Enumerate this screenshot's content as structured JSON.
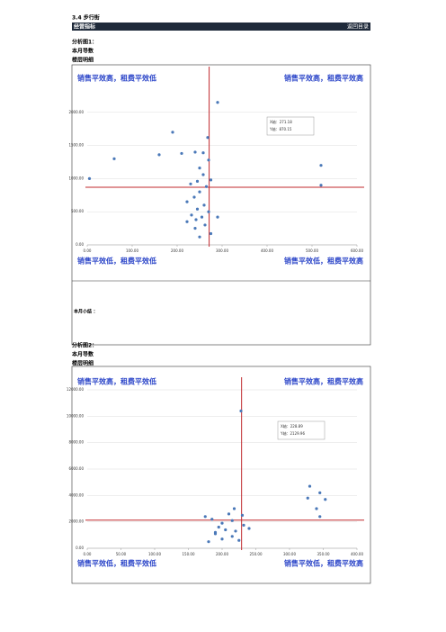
{
  "header": {
    "section": "3.4 步行街",
    "title": "经营指标",
    "link": "返回目录"
  },
  "panels": [
    {
      "heading": "分析图1：",
      "subheading": "本月导数",
      "caption": "楼层明细",
      "summary": "本月小结 ：",
      "chart": {
        "type": "scatter",
        "color": "#4a78b8",
        "ref_color": "#c0282d",
        "quadrant_labels": [
          "销售平效高，租费平效低",
          "销售平效高，租费平效高",
          "销售平效低，租费平效低",
          "销售平效低，租费平效高"
        ],
        "note": [
          "X轴：271.18",
          "Y轴：870.15"
        ],
        "ref_x": 271.18,
        "ref_y": 870.15,
        "xlim": [
          0,
          600
        ],
        "ylim": [
          0,
          2500
        ],
        "xticks": [
          {
            "value": 0,
            "label": "0.00"
          },
          {
            "value": 100,
            "label": "100.00"
          },
          {
            "value": 200,
            "label": "200.00"
          },
          {
            "value": 300,
            "label": "300.00"
          },
          {
            "value": 400,
            "label": "400.00"
          },
          {
            "value": 500,
            "label": "500.00"
          },
          {
            "value": 600,
            "label": "600.00"
          }
        ],
        "yticks": [
          {
            "value": 0,
            "label": "0.00"
          },
          {
            "value": 500,
            "label": "500.00"
          },
          {
            "value": 1000,
            "label": "1000.00"
          },
          {
            "value": 1500,
            "label": "1500.00"
          },
          {
            "value": 2000,
            "label": "2000.00"
          }
        ],
        "x": [
          290,
          190,
          268,
          160,
          210,
          258,
          240,
          270,
          60,
          5,
          520,
          520,
          250,
          258,
          275,
          245,
          230,
          265,
          250,
          238,
          222,
          260,
          245,
          270,
          232,
          255,
          242,
          290,
          222,
          262,
          240,
          275,
          250
        ],
        "y": [
          2150,
          1700,
          1620,
          1360,
          1380,
          1390,
          1400,
          1280,
          1300,
          1000,
          1200,
          900,
          1160,
          1060,
          980,
          960,
          920,
          880,
          800,
          720,
          650,
          600,
          540,
          500,
          450,
          420,
          380,
          420,
          350,
          300,
          250,
          170,
          120
        ]
      }
    },
    {
      "heading": "分析图2：",
      "subheading": "本月导数",
      "caption": "楼层明细",
      "chart": {
        "type": "scatter",
        "color": "#4a78b8",
        "ref_color": "#c0282d",
        "quadrant_labels": [
          "销售平效高，租费平效低",
          "销售平效高，租费平效高",
          "销售平效低，租费平效低",
          "销售平效低，租费平效高"
        ],
        "note": [
          "X轴：228.89",
          "Y轴：2129.96"
        ],
        "ref_x": 228.89,
        "ref_y": 2129.96,
        "xlim": [
          0,
          400
        ],
        "ylim": [
          0,
          12000
        ],
        "xticks": [
          {
            "value": 0,
            "label": "0.00"
          },
          {
            "value": 50,
            "label": "50.00"
          },
          {
            "value": 100,
            "label": "100.00"
          },
          {
            "value": 150,
            "label": "150.00"
          },
          {
            "value": 200,
            "label": "200.00"
          },
          {
            "value": 250,
            "label": "250.00"
          },
          {
            "value": 300,
            "label": "300.00"
          },
          {
            "value": 350,
            "label": "350.00"
          },
          {
            "value": 400,
            "label": "400.00"
          }
        ],
        "yticks": [
          {
            "value": 0,
            "label": "0.00"
          },
          {
            "value": 2000,
            "label": "2000.00"
          },
          {
            "value": 4000,
            "label": "4000.00"
          },
          {
            "value": 6000,
            "label": "6000.00"
          },
          {
            "value": 8000,
            "label": "8000.00"
          },
          {
            "value": 10000,
            "label": "10000.00"
          },
          {
            "value": 12000,
            "label": "12000.00"
          }
        ],
        "x": [
          228,
          330,
          345,
          327,
          353,
          340,
          345,
          218,
          210,
          230,
          185,
          215,
          200,
          232,
          195,
          205,
          220,
          190,
          215,
          200,
          180,
          225,
          240,
          175,
          190
        ],
        "y": [
          10400,
          4700,
          4200,
          3800,
          3700,
          3000,
          2400,
          3000,
          2600,
          2500,
          2200,
          2100,
          1900,
          1750,
          1600,
          1400,
          1300,
          1100,
          900,
          700,
          500,
          600,
          1500,
          2400,
          1200
        ]
      }
    }
  ]
}
